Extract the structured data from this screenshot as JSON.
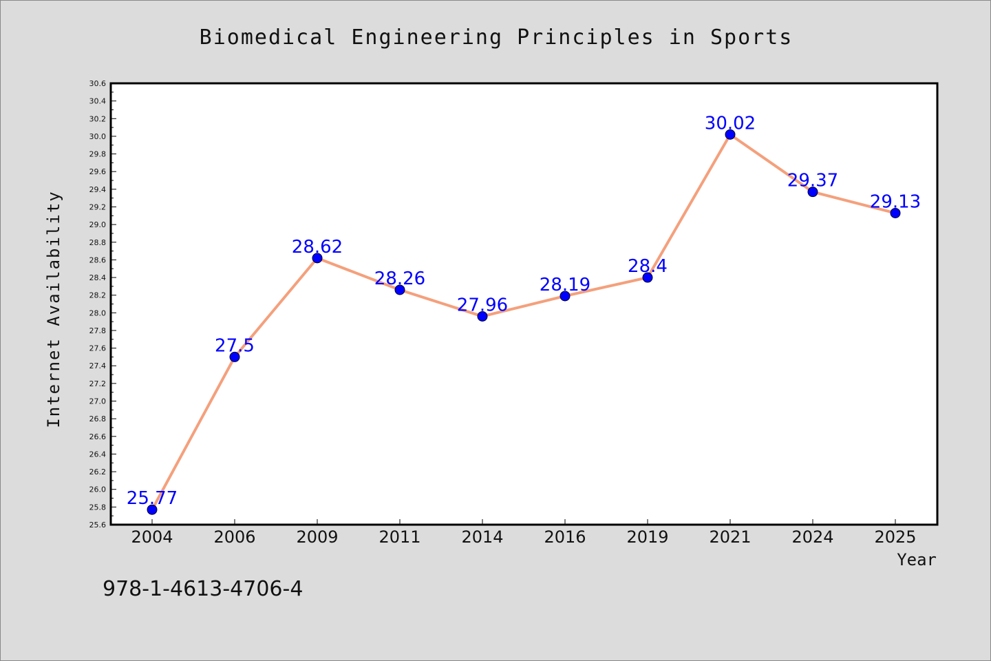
{
  "chart_data": {
    "type": "line",
    "title": "Biomedical Engineering Principles in Sports",
    "xlabel": "Year",
    "ylabel": "Internet Availability",
    "categories": [
      "2004",
      "2006",
      "2009",
      "2011",
      "2014",
      "2016",
      "2019",
      "2021",
      "2024",
      "2025"
    ],
    "values": [
      25.77,
      27.5,
      28.62,
      28.26,
      27.96,
      28.19,
      28.4,
      30.02,
      29.37,
      29.13
    ],
    "data_labels": [
      "25.77",
      "27.5",
      "28.62",
      "28.26",
      "27.96",
      "28.19",
      "28.4",
      "30.02",
      "29.37",
      "29.13"
    ],
    "ylim": [
      25.6,
      30.6
    ],
    "yticks": [
      "25.6",
      "25.8",
      "26.0",
      "26.2",
      "26.4",
      "26.6",
      "26.8",
      "27.0",
      "27.2",
      "27.4",
      "27.6",
      "27.8",
      "28.0",
      "28.2",
      "28.4",
      "28.6",
      "28.8",
      "29.0",
      "29.2",
      "29.4",
      "29.6",
      "29.8",
      "30.0",
      "30.2",
      "30.4",
      "30.6"
    ],
    "grid": false,
    "line_color": "#f4a07c",
    "marker_color": "#0000ff",
    "label_color": "#0000ff"
  },
  "footer": {
    "isbn": "978-1-4613-4706-4"
  }
}
